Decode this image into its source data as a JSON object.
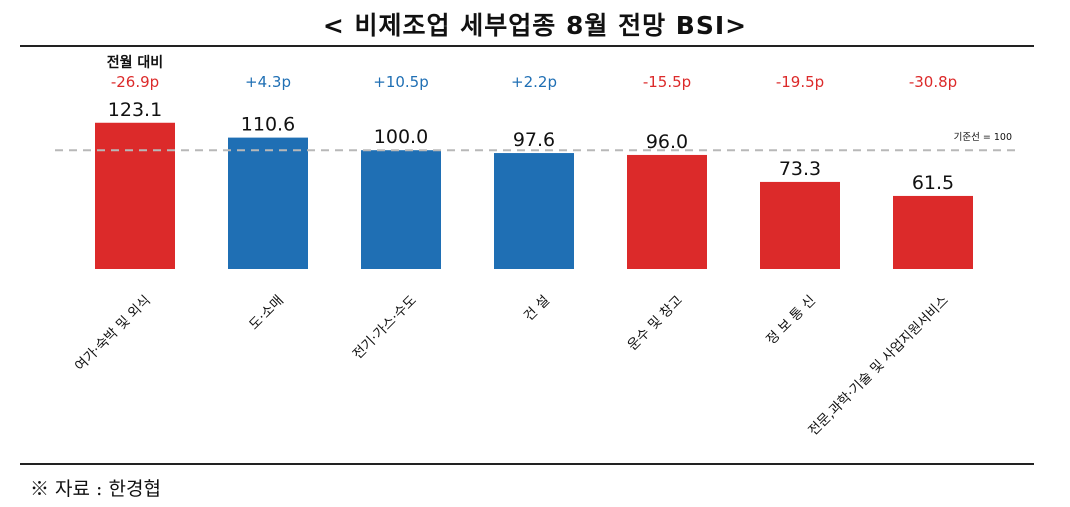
{
  "title": "< 비제조업 세부업종 8월 전망 BSI>",
  "source": "※ 자료 : 한경협",
  "colors": {
    "positive": "#1f6fb4",
    "negative": "#dc2a2a",
    "reference": "#b8b8b8"
  },
  "chart_data": {
    "type": "bar",
    "title": "< 비제조업 세부업종 8월 전망 BSI>",
    "delta_caption": "전월 대비",
    "reference_line": {
      "value": 100,
      "label": "기준선 = 100"
    },
    "categories": [
      "여가·숙박 및 외식",
      "도·소매",
      "전기·가스·수도",
      "건 설",
      "운수 및 창고",
      "정 보 통 신",
      "전문,과학·기술 및 사업지원서비스"
    ],
    "values": [
      123.1,
      110.6,
      100.0,
      97.6,
      96.0,
      73.3,
      61.5
    ],
    "value_labels": [
      "123.1",
      "110.6",
      "100.0",
      "97.6",
      "96.0",
      "73.3",
      "61.5"
    ],
    "monthly_change_labels": [
      "-26.9p",
      "+4.3p",
      "+10.5p",
      "+2.2p",
      "-15.5p",
      "-19.5p",
      "-30.8p"
    ],
    "monthly_change": [
      -26.9,
      4.3,
      10.5,
      2.2,
      -15.5,
      -19.5,
      -30.8
    ],
    "xlabel": "",
    "ylabel": "",
    "grid": false,
    "legend": "none"
  }
}
